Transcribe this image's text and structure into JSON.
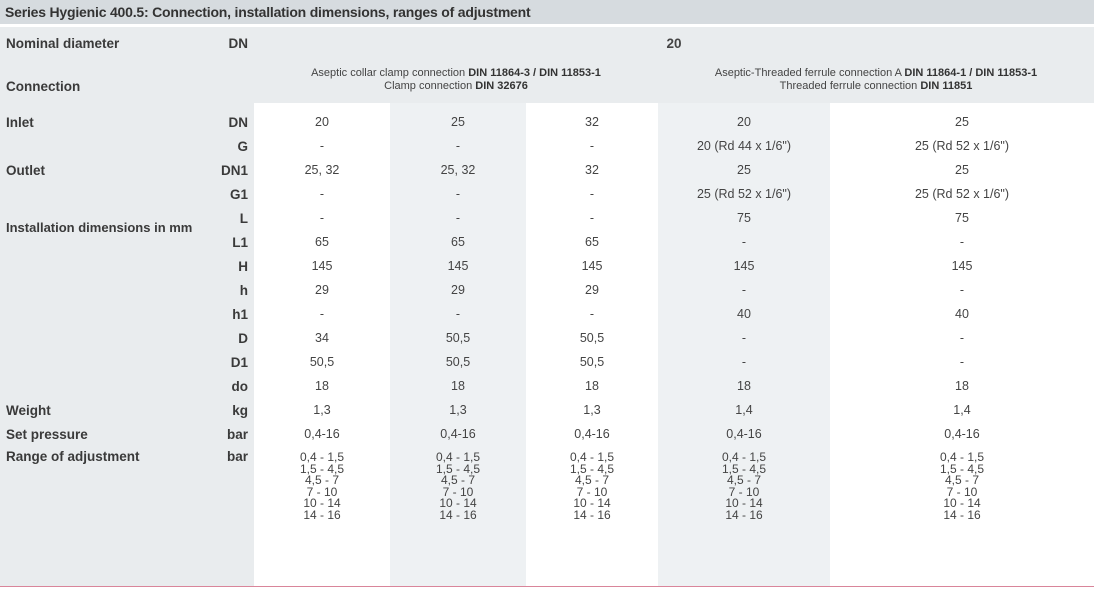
{
  "title": "Series Hygienic 400.5: Connection, installation dimensions, ranges of adjustment",
  "nominal": {
    "label": "Nominal diameter",
    "unit": "DN",
    "value": "20"
  },
  "connection": {
    "label": "Connection",
    "clamp_line1_pre": "Aseptic collar clamp connection ",
    "clamp_line1_bold": "DIN 11864-3 / DIN 11853-1",
    "clamp_line2_pre": "Clamp connection ",
    "clamp_line2_bold": "DIN 32676",
    "thread_line1_pre": "Aseptic-Threaded ferrule connection A ",
    "thread_line1_bold": "DIN 11864-1 / DIN 11853-1",
    "thread_line2_pre": "Threaded ferrule connection ",
    "thread_line2_bold": "DIN 11851"
  },
  "groups": {
    "inlet": "Inlet",
    "outlet": "Outlet",
    "install": "Installation dimensions in mm",
    "weight": "Weight",
    "set_pressure": "Set pressure",
    "range": "Range of adjustment"
  },
  "rows": [
    {
      "unit": "DN",
      "cells": [
        "20",
        "25",
        "32",
        "20",
        "25"
      ]
    },
    {
      "unit": "G",
      "cells": [
        "-",
        "-",
        "-",
        "20 (Rd 44 x 1/6\")",
        "25 (Rd 52 x 1/6\")"
      ]
    },
    {
      "unit": "DN1",
      "cells": [
        "25, 32",
        "25, 32",
        "32",
        "25",
        "25"
      ]
    },
    {
      "unit": "G1",
      "cells": [
        "-",
        "-",
        "-",
        "25 (Rd 52 x 1/6\")",
        "25 (Rd 52 x 1/6\")"
      ]
    },
    {
      "unit": "L",
      "cells": [
        "-",
        "-",
        "-",
        "75",
        "75"
      ]
    },
    {
      "unit": "L1",
      "cells": [
        "65",
        "65",
        "65",
        "-",
        "-"
      ]
    },
    {
      "unit": "H",
      "cells": [
        "145",
        "145",
        "145",
        "145",
        "145"
      ]
    },
    {
      "unit": "h",
      "cells": [
        "29",
        "29",
        "29",
        "-",
        "-"
      ]
    },
    {
      "unit": "h1",
      "cells": [
        "-",
        "-",
        "-",
        "40",
        "40"
      ]
    },
    {
      "unit": "D",
      "cells": [
        "34",
        "50,5",
        "50,5",
        "-",
        "-"
      ]
    },
    {
      "unit": "D1",
      "cells": [
        "50,5",
        "50,5",
        "50,5",
        "-",
        "-"
      ]
    },
    {
      "unit": "do",
      "cells": [
        "18",
        "18",
        "18",
        "18",
        "18"
      ]
    },
    {
      "unit": "kg",
      "cells": [
        "1,3",
        "1,3",
        "1,3",
        "1,4",
        "1,4"
      ]
    },
    {
      "unit": "bar",
      "cells": [
        "0,4-16",
        "0,4-16",
        "0,4-16",
        "0,4-16",
        "0,4-16"
      ]
    }
  ],
  "range": {
    "unit": "bar",
    "values": [
      "0,4 - 1,5",
      "1,5 - 4,5",
      "4,5 - 7",
      "7 - 10",
      "10 - 14",
      "14 - 16"
    ]
  },
  "colors": {
    "header_bg": "#d6dbdf",
    "label_col_bg": "#e9ecee",
    "shaded_col_bg": "#eef1f3",
    "rule": "#d9859a"
  }
}
